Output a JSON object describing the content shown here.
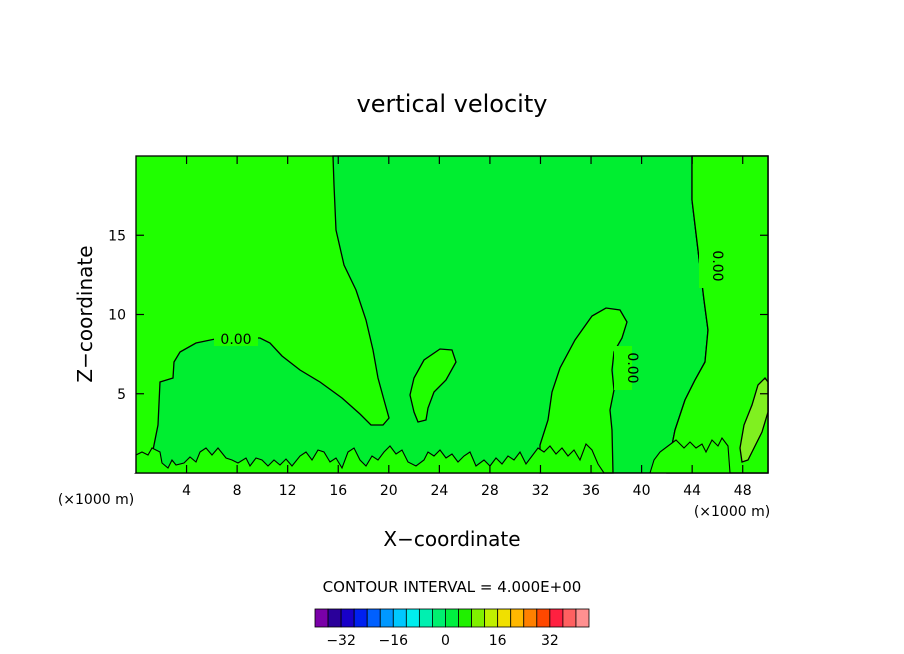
{
  "chart_data": {
    "type": "contour",
    "title": "vertical velocity",
    "xlabel": "X−coordinate",
    "ylabel": "Z−coordinate",
    "x_unit": "(×1000 m)",
    "x_unit_right": "(×1000 m)",
    "xlim": [
      0,
      50
    ],
    "ylim": [
      0,
      20
    ],
    "x_ticks": [
      4,
      8,
      12,
      16,
      20,
      24,
      28,
      32,
      36,
      40,
      44,
      48
    ],
    "y_ticks": [
      5,
      10,
      15
    ],
    "contour_level_labels": [
      "0.00",
      "0.00",
      "0.00"
    ],
    "contour_interval_text": "CONTOUR INTERVAL = 4.000E+00",
    "colorbar": {
      "colors": [
        "#7a00a8",
        "#2a009a",
        "#1800c8",
        "#0020f0",
        "#0060ff",
        "#0098ff",
        "#00c8ff",
        "#00eeee",
        "#00f0b0",
        "#00f070",
        "#00f040",
        "#20f000",
        "#80f000",
        "#c0f000",
        "#f0e000",
        "#ffb800",
        "#ff8000",
        "#ff4800",
        "#ff2040",
        "#ff6060",
        "#ff9090"
      ],
      "tick_labels": [
        "−32",
        "−16",
        "0",
        "16",
        "32"
      ],
      "tick_values": [
        -32,
        -16,
        0,
        16,
        32
      ]
    },
    "colors": {
      "background": "#20ff00",
      "negative_region": "#00ee30",
      "strong_updraft": "#80f020"
    }
  }
}
